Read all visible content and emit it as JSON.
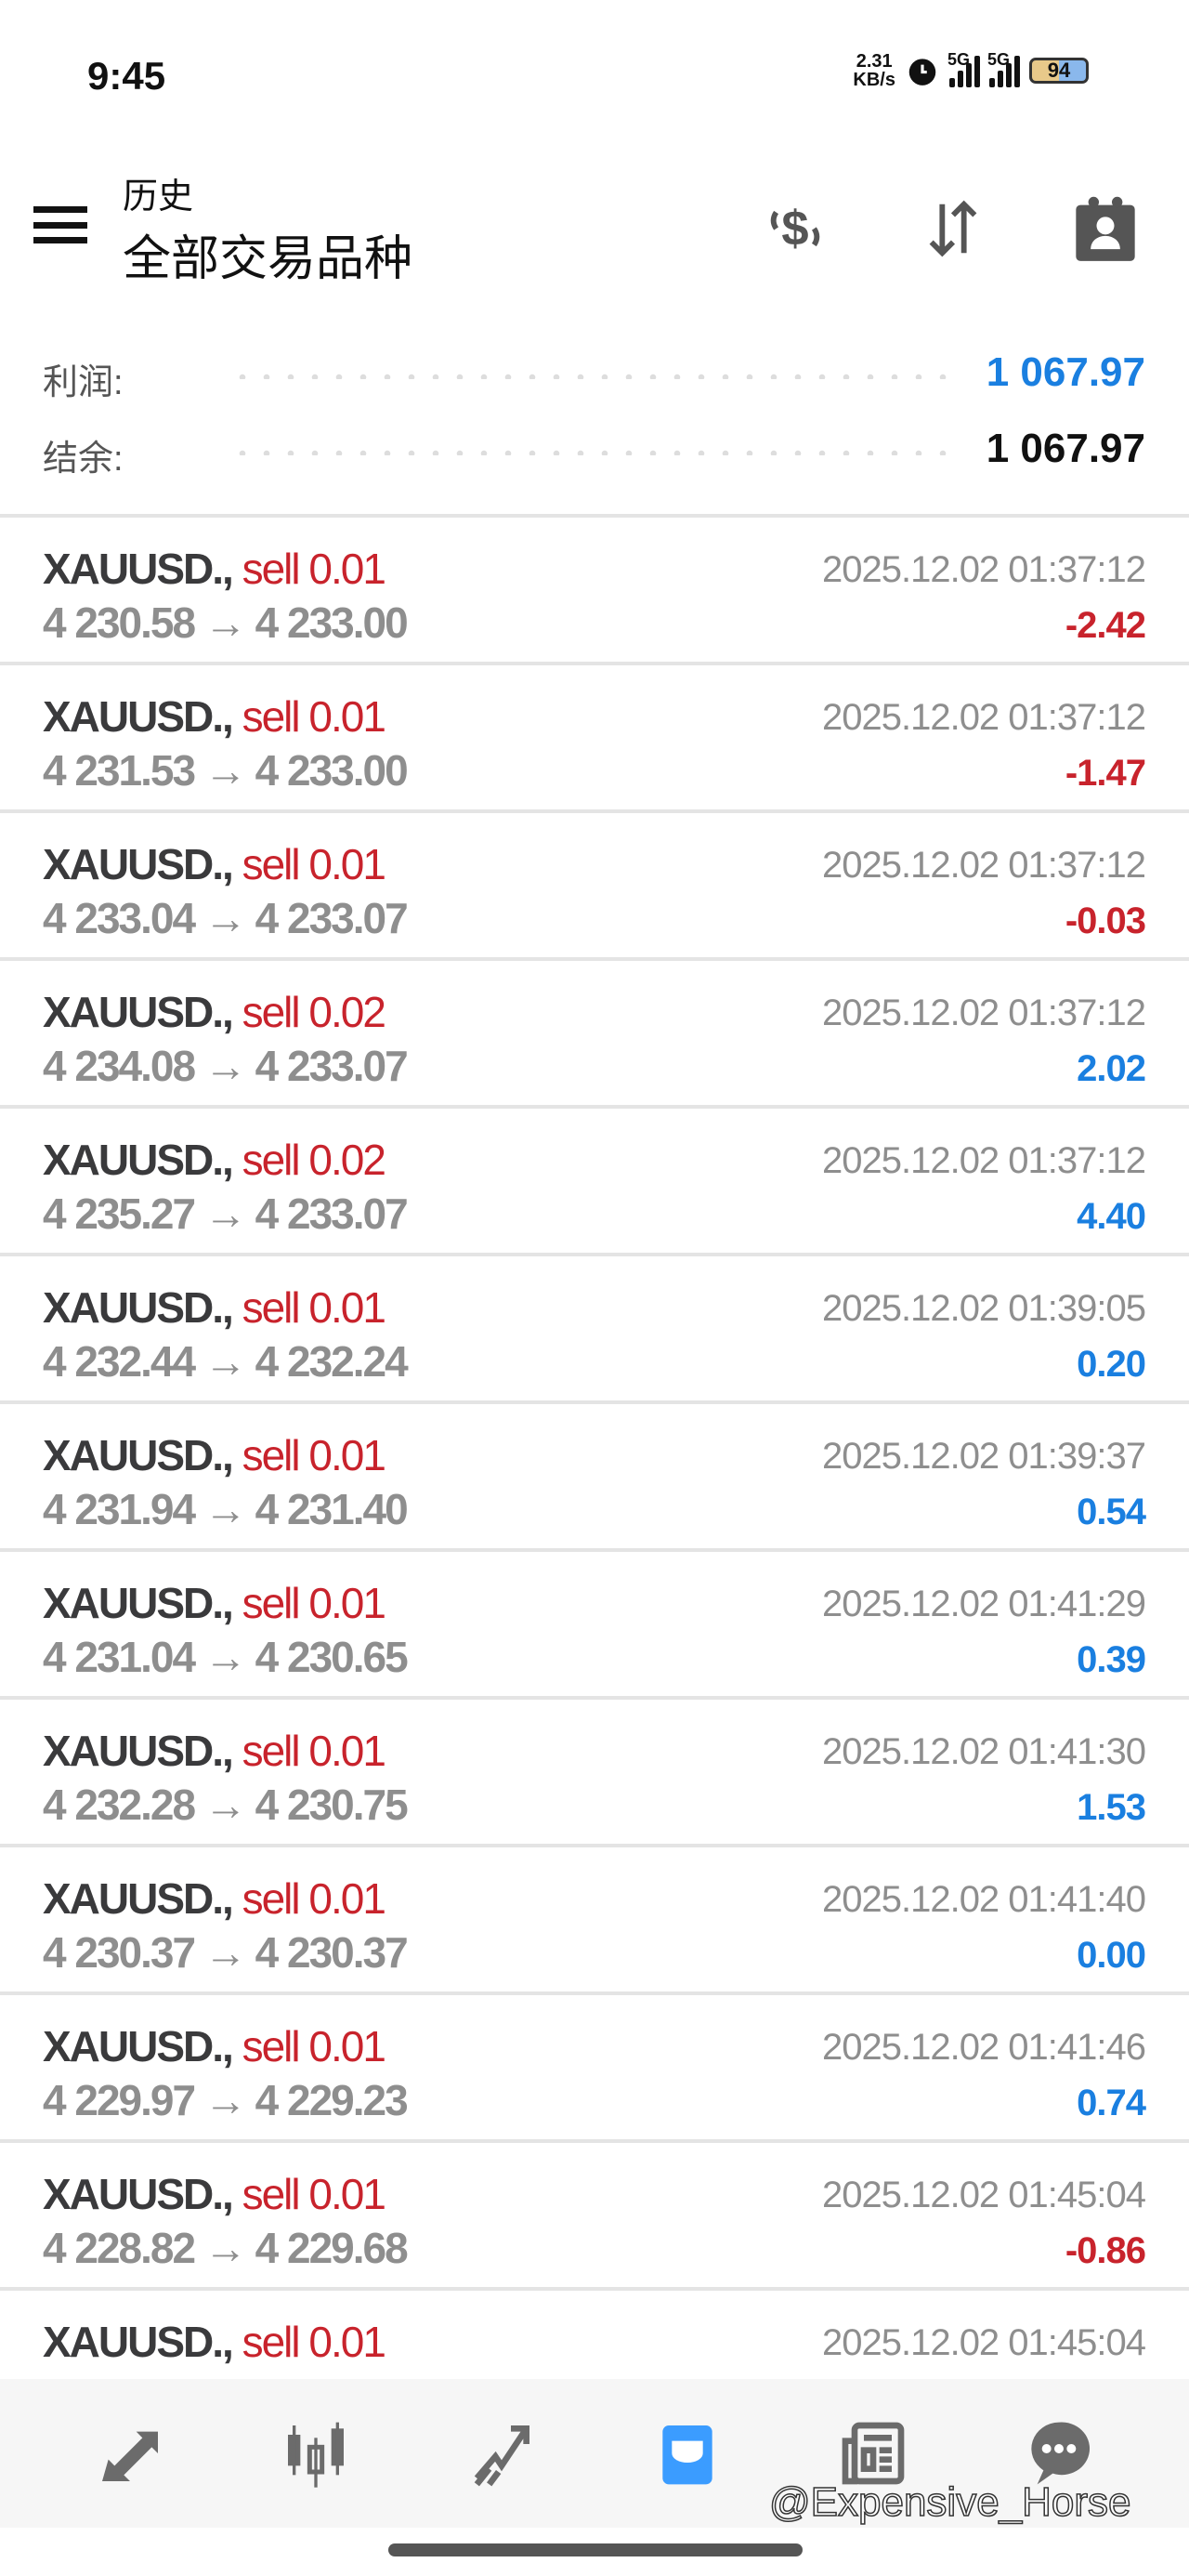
{
  "status_bar": {
    "time": "9:45",
    "net_speed": "2.31",
    "net_unit": "KB/s",
    "sim1": "5G",
    "sim2": "5G",
    "battery": "94"
  },
  "header": {
    "subtitle": "历史",
    "title": "全部交易品种",
    "icons": [
      "currency-exchange-icon",
      "sort-icon",
      "calendar-contact-icon"
    ]
  },
  "summary": {
    "profit_label": "利润:",
    "profit_value": "1 067.97",
    "balance_label": "结余:",
    "balance_value": "1 067.97"
  },
  "colors": {
    "profit_blue": "#1a7fe0",
    "loss_red": "#c8232c",
    "sell_red": "#c8232c",
    "accent": "#3b9cff"
  },
  "trades": [
    {
      "symbol": "XAUUSD.,",
      "side": "sell 0.01",
      "open": "4 230.58",
      "close": "4 233.00",
      "time": "2025.12.02 01:37:12",
      "profit": "-2.42",
      "neg": true
    },
    {
      "symbol": "XAUUSD.,",
      "side": "sell 0.01",
      "open": "4 231.53",
      "close": "4 233.00",
      "time": "2025.12.02 01:37:12",
      "profit": "-1.47",
      "neg": true
    },
    {
      "symbol": "XAUUSD.,",
      "side": "sell 0.01",
      "open": "4 233.04",
      "close": "4 233.07",
      "time": "2025.12.02 01:37:12",
      "profit": "-0.03",
      "neg": true
    },
    {
      "symbol": "XAUUSD.,",
      "side": "sell 0.02",
      "open": "4 234.08",
      "close": "4 233.07",
      "time": "2025.12.02 01:37:12",
      "profit": "2.02",
      "neg": false
    },
    {
      "symbol": "XAUUSD.,",
      "side": "sell 0.02",
      "open": "4 235.27",
      "close": "4 233.07",
      "time": "2025.12.02 01:37:12",
      "profit": "4.40",
      "neg": false
    },
    {
      "symbol": "XAUUSD.,",
      "side": "sell 0.01",
      "open": "4 232.44",
      "close": "4 232.24",
      "time": "2025.12.02 01:39:05",
      "profit": "0.20",
      "neg": false
    },
    {
      "symbol": "XAUUSD.,",
      "side": "sell 0.01",
      "open": "4 231.94",
      "close": "4 231.40",
      "time": "2025.12.02 01:39:37",
      "profit": "0.54",
      "neg": false
    },
    {
      "symbol": "XAUUSD.,",
      "side": "sell 0.01",
      "open": "4 231.04",
      "close": "4 230.65",
      "time": "2025.12.02 01:41:29",
      "profit": "0.39",
      "neg": false
    },
    {
      "symbol": "XAUUSD.,",
      "side": "sell 0.01",
      "open": "4 232.28",
      "close": "4 230.75",
      "time": "2025.12.02 01:41:30",
      "profit": "1.53",
      "neg": false
    },
    {
      "symbol": "XAUUSD.,",
      "side": "sell 0.01",
      "open": "4 230.37",
      "close": "4 230.37",
      "time": "2025.12.02 01:41:40",
      "profit": "0.00",
      "neg": false
    },
    {
      "symbol": "XAUUSD.,",
      "side": "sell 0.01",
      "open": "4 229.97",
      "close": "4 229.23",
      "time": "2025.12.02 01:41:46",
      "profit": "0.74",
      "neg": false
    },
    {
      "symbol": "XAUUSD.,",
      "side": "sell 0.01",
      "open": "4 228.82",
      "close": "4 229.68",
      "time": "2025.12.02 01:45:04",
      "profit": "-0.86",
      "neg": true
    },
    {
      "symbol": "XAUUSD.,",
      "side": "sell 0.01",
      "open": "",
      "close": "",
      "time": "2025.12.02 01:45:04",
      "profit": "",
      "neg": false
    }
  ],
  "arrow": "→",
  "bottom_nav": {
    "items": [
      "quotes-icon",
      "chart-icon",
      "trade-icon",
      "history-icon",
      "news-icon",
      "messages-icon"
    ],
    "active": 3
  },
  "watermark": "@Expensive_Horse"
}
